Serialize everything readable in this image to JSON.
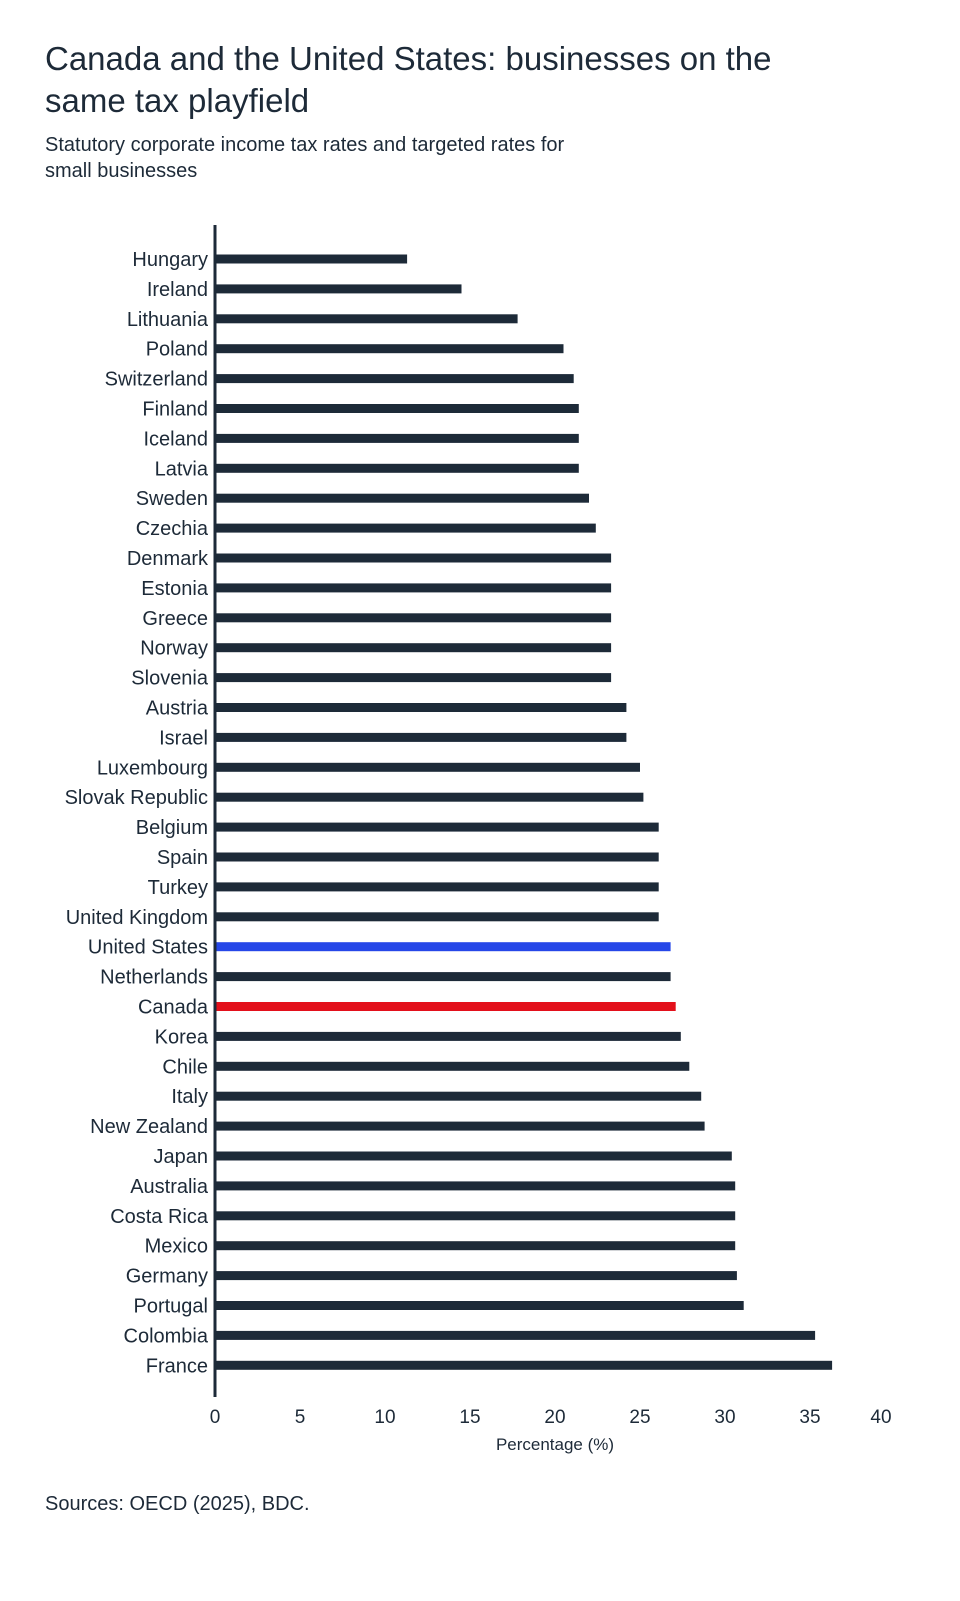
{
  "chart_data": {
    "type": "bar",
    "orientation": "horizontal",
    "title": "Canada and the United States: businesses on the same tax playfield",
    "subtitle": "Statutory corporate income tax rates and targeted rates for small businesses",
    "xlabel": "Percentage (%)",
    "ylabel": "",
    "xlim": [
      0,
      40
    ],
    "xticks": [
      "0",
      "5",
      "10",
      "15",
      "20",
      "25",
      "30",
      "35",
      "40"
    ],
    "grid": false,
    "categories": [
      "Hungary",
      "Ireland",
      "Lithuania",
      "Poland",
      "Switzerland",
      "Finland",
      "Iceland",
      "Latvia",
      "Sweden",
      "Czechia",
      "Denmark",
      "Estonia",
      "Greece",
      "Norway",
      "Slovenia",
      "Austria",
      "Israel",
      "Luxembourg",
      "Slovak Republic",
      "Belgium",
      "Spain",
      "Turkey",
      "United Kingdom",
      "United States",
      "Netherlands",
      "Canada",
      "Korea",
      "Chile",
      "Italy",
      "New Zealand",
      "Japan",
      "Australia",
      "Costa Rica",
      "Mexico",
      "Germany",
      "Portugal",
      "Colombia",
      "France"
    ],
    "values": [
      11.3,
      14.5,
      17.8,
      20.5,
      21.1,
      21.4,
      21.4,
      21.4,
      22.0,
      22.4,
      23.3,
      23.3,
      23.3,
      23.3,
      23.3,
      24.2,
      24.2,
      25.0,
      25.2,
      26.1,
      26.1,
      26.1,
      26.1,
      26.8,
      26.8,
      27.1,
      27.4,
      27.9,
      28.6,
      28.8,
      30.4,
      30.6,
      30.6,
      30.6,
      30.7,
      31.1,
      35.3,
      36.3
    ],
    "colors": {
      "default": "#1d2a38",
      "United States": "#2647e8",
      "Canada": "#e3101b"
    },
    "source": "Sources: OECD (2025), BDC."
  }
}
